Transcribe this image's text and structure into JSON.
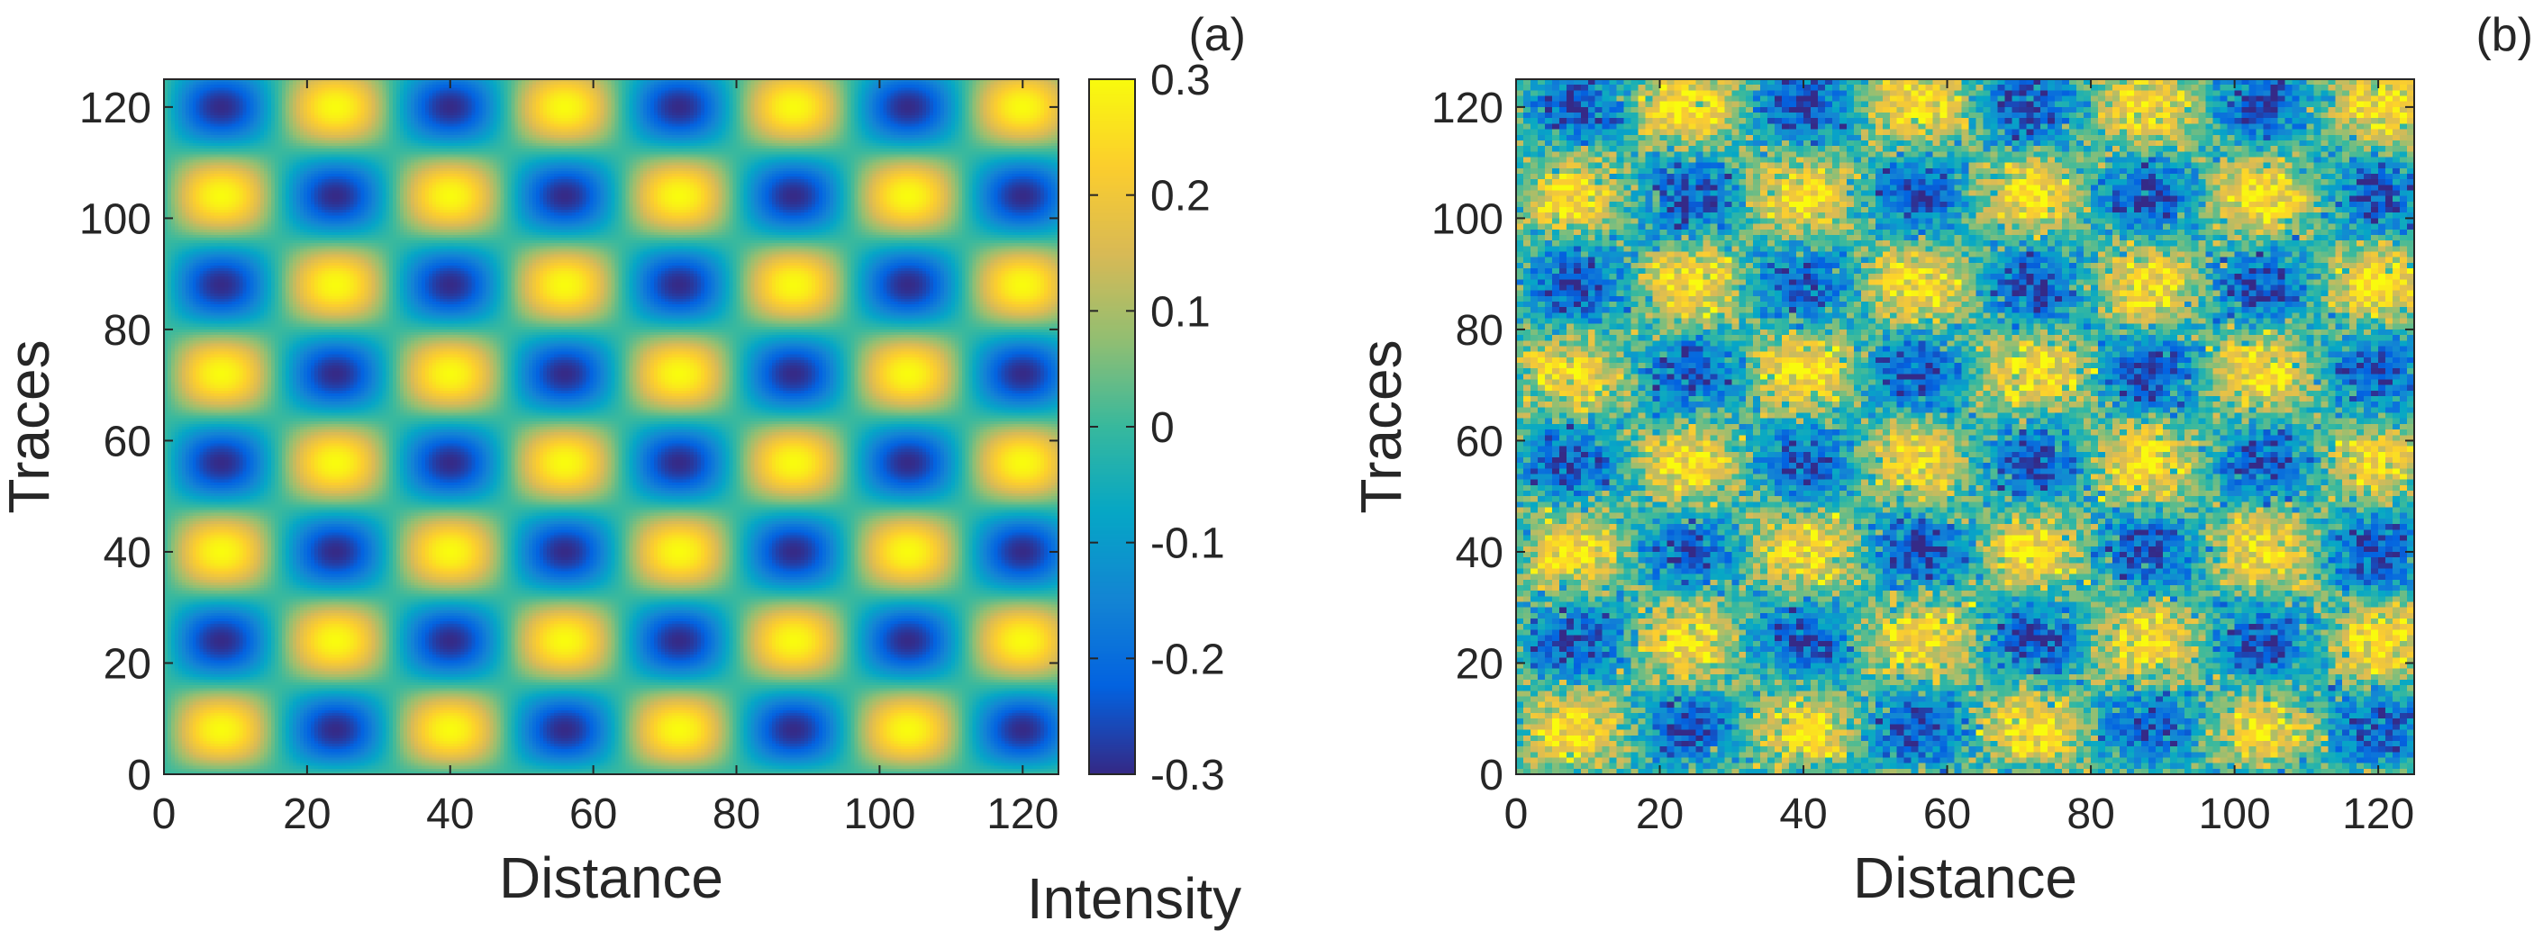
{
  "chart_data": [
    {
      "type": "heatmap",
      "panel_label": "(a)",
      "description_of_field": "clean checkerboard of alternating positive/negative blobs",
      "xlabel": "Distance",
      "ylabel": "Traces",
      "xlim": [
        0,
        125
      ],
      "ylim": [
        0,
        125
      ],
      "xticks": [
        0,
        20,
        40,
        60,
        80,
        100,
        120
      ],
      "yticks": [
        0,
        20,
        40,
        60,
        80,
        100,
        120
      ],
      "blob_centers_x": [
        8,
        24,
        40,
        56,
        71,
        87,
        103,
        119
      ],
      "blob_centers_y": [
        8,
        24,
        40,
        56,
        71,
        87,
        103,
        119
      ],
      "blob_sign_at_x8_y8": 1,
      "amplitude": 0.3,
      "noise": false,
      "colorbar": {
        "label": "Intensity",
        "min": -0.3,
        "max": 0.3,
        "ticks": [
          0.3,
          0.2,
          0.1,
          0,
          -0.1,
          -0.2,
          -0.3
        ],
        "tick_labels": [
          "0.3",
          "0.2",
          "0.1",
          "0",
          "-0.1",
          "-0.2",
          "-0.3"
        ]
      }
    },
    {
      "type": "heatmap",
      "panel_label": "(b)",
      "description_of_field": "same checkerboard pattern with strong random noise",
      "xlabel": "Distance",
      "ylabel": "Traces",
      "xlim": [
        0,
        125
      ],
      "ylim": [
        0,
        125
      ],
      "xticks": [
        0,
        20,
        40,
        60,
        80,
        100,
        120
      ],
      "yticks": [
        0,
        20,
        40,
        60,
        80,
        100,
        120
      ],
      "blob_centers_x": [
        8,
        24,
        40,
        56,
        71,
        87,
        103,
        119
      ],
      "blob_centers_y": [
        8,
        24,
        40,
        56,
        71,
        87,
        103,
        119
      ],
      "blob_sign_at_x8_y8": 1,
      "amplitude": 0.3,
      "noise": true,
      "colorbar": null
    }
  ],
  "colormap": {
    "name": "parula",
    "stops": [
      "#352a87",
      "#0363e1",
      "#1485d4",
      "#06a7c6",
      "#38b99e",
      "#92bf73",
      "#d9ba56",
      "#fcce2e",
      "#f9fb0e"
    ]
  }
}
